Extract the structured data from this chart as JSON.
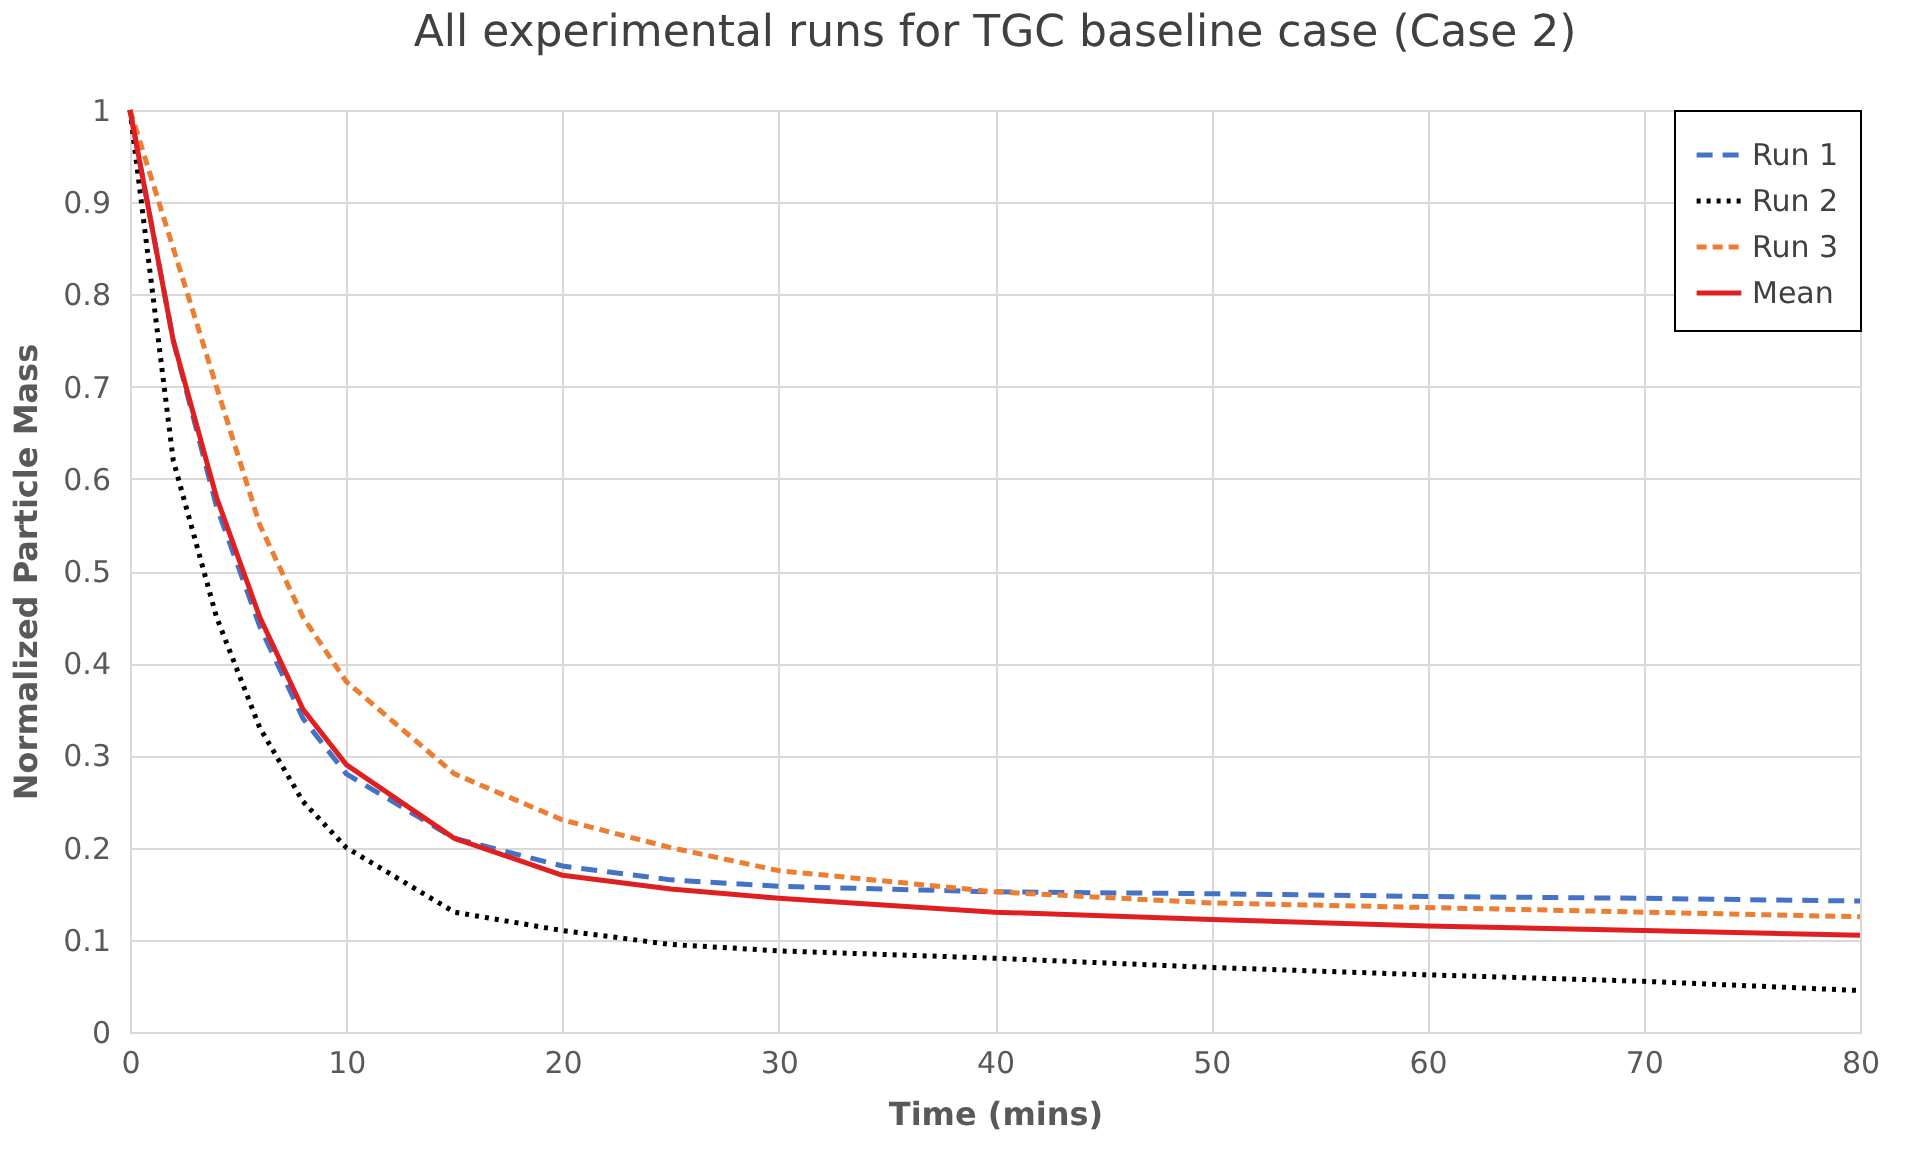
{
  "chart_data": {
    "type": "line",
    "title": "All experimental runs for TGC baseline case (Case 2)",
    "xlabel": "Time (mins)",
    "ylabel": "Normalized Particle Mass",
    "x": [
      0,
      2,
      4,
      6,
      8,
      10,
      15,
      20,
      25,
      30,
      40,
      50,
      60,
      70,
      80
    ],
    "series": [
      {
        "name": "Run 1",
        "color": "#4472c4",
        "line_style": "dashed",
        "values": [
          1,
          0.75,
          0.57,
          0.44,
          0.34,
          0.28,
          0.21,
          0.18,
          0.165,
          0.158,
          0.152,
          0.15,
          0.147,
          0.145,
          0.142
        ]
      },
      {
        "name": "Run 2",
        "color": "#000000",
        "line_style": "dotted",
        "values": [
          1,
          0.62,
          0.45,
          0.33,
          0.25,
          0.2,
          0.13,
          0.11,
          0.095,
          0.088,
          0.08,
          0.07,
          0.062,
          0.055,
          0.045
        ]
      },
      {
        "name": "Run 3",
        "color": "#ed7d31",
        "line_style": "dashed",
        "values": [
          1,
          0.85,
          0.7,
          0.55,
          0.45,
          0.38,
          0.28,
          0.23,
          0.2,
          0.175,
          0.152,
          0.14,
          0.135,
          0.13,
          0.125
        ]
      },
      {
        "name": "Mean",
        "color": "#e02020",
        "line_style": "solid",
        "values": [
          1,
          0.75,
          0.58,
          0.45,
          0.35,
          0.29,
          0.21,
          0.17,
          0.155,
          0.145,
          0.13,
          0.122,
          0.115,
          0.11,
          0.105
        ]
      }
    ],
    "xlim": [
      0,
      80
    ],
    "xticks": [
      0,
      10,
      20,
      30,
      40,
      50,
      60,
      70,
      80
    ],
    "ylim": [
      0,
      1
    ],
    "yticks": [
      0,
      0.1,
      0.2,
      0.3,
      0.4,
      0.5,
      0.6,
      0.7,
      0.8,
      0.9,
      1
    ],
    "grid": true,
    "legend": "top right",
    "marker": "none"
  }
}
